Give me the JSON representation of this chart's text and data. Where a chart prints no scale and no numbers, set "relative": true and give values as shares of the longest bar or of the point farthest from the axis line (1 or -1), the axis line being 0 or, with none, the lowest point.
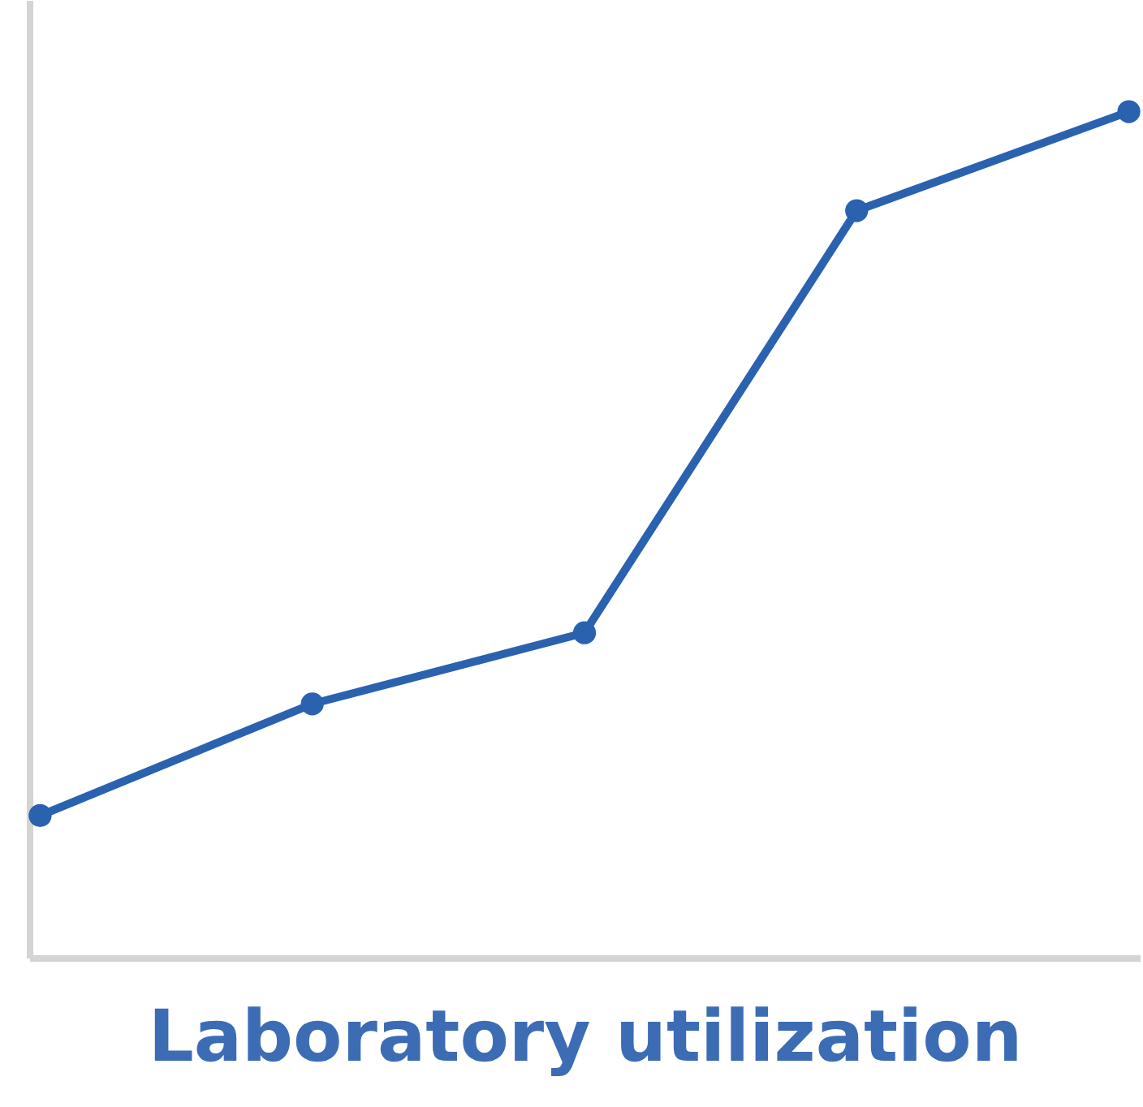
{
  "chart_data": {
    "type": "line",
    "relative": true,
    "xlabel": "Laboratory utilization",
    "categories": [
      null,
      null,
      null,
      null,
      null
    ],
    "series": [
      {
        "color": "#2a62b0",
        "values": [
          0.168,
          0.3,
          0.384,
          0.883,
          1
        ]
      }
    ],
    "marker": "circle",
    "line_style": "solid",
    "tick_labels": false
  }
}
